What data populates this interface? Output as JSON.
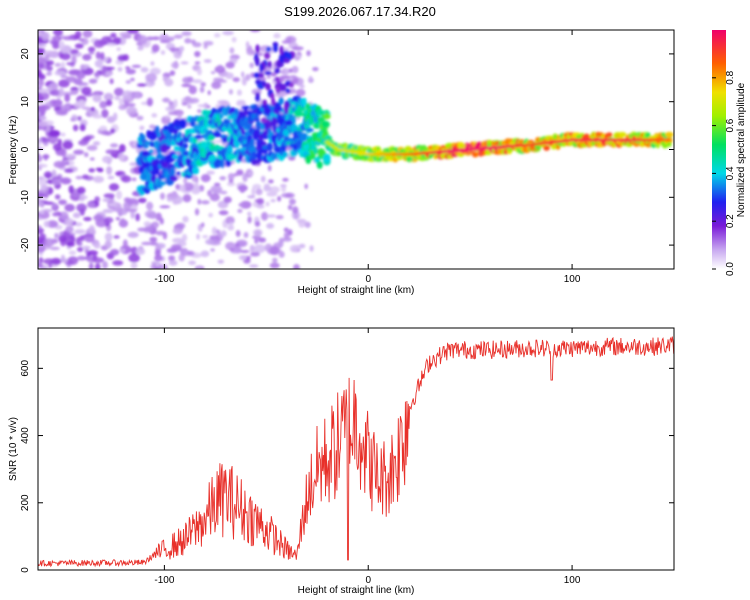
{
  "chart_data": [
    {
      "type": "heatmap",
      "title": "S199.2026.067.17.34.R20",
      "xlabel": "Height of straight line (km)",
      "ylabel": "Frequency (Hz)",
      "xlim": [
        -162,
        150
      ],
      "ylim": [
        -25,
        25
      ],
      "xticks": [
        -100,
        0,
        100
      ],
      "yticks": [
        -20,
        -10,
        0,
        10,
        20
      ],
      "colorbar": {
        "label": "Normalized spectral amplitude",
        "ticks": [
          "0.0",
          "0.2",
          "0.4",
          "0.6",
          "0.8"
        ],
        "range": [
          0,
          1
        ]
      },
      "trace": [
        {
          "x": -110,
          "f": -3,
          "amp": 0.35
        },
        {
          "x": -100,
          "f": -1,
          "amp": 0.3
        },
        {
          "x": -90,
          "f": 0,
          "amp": 0.35
        },
        {
          "x": -80,
          "f": 2,
          "amp": 0.4
        },
        {
          "x": -70,
          "f": 3,
          "amp": 0.38
        },
        {
          "x": -55,
          "f": 3,
          "amp": 0.3
        },
        {
          "x": -45,
          "f": 4,
          "amp": 0.35
        },
        {
          "x": -35,
          "f": 5,
          "amp": 0.4
        },
        {
          "x": -25,
          "f": 3,
          "amp": 0.5
        },
        {
          "x": -15,
          "f": 0,
          "amp": 0.55
        },
        {
          "x": 0,
          "f": -1,
          "amp": 0.6
        },
        {
          "x": 20,
          "f": -1,
          "amp": 0.7
        },
        {
          "x": 50,
          "f": 0,
          "amp": 0.9
        },
        {
          "x": 80,
          "f": 1,
          "amp": 0.75
        },
        {
          "x": 100,
          "f": 2,
          "amp": 0.8
        },
        {
          "x": 130,
          "f": 2,
          "amp": 0.8
        },
        {
          "x": 148,
          "f": 2,
          "amp": 0.7
        }
      ]
    },
    {
      "type": "line",
      "xlabel": "Height of straight line (km)",
      "ylabel": "SNR (10 * v/v)",
      "xlim": [
        -162,
        150
      ],
      "ylim": [
        0,
        720
      ],
      "xticks": [
        -100,
        0,
        100
      ],
      "yticks": [
        0,
        200,
        400,
        600
      ],
      "color": "#e8302a",
      "series": [
        {
          "name": "SNR",
          "x": [
            -162,
            -110,
            -105,
            -90,
            -80,
            -75,
            -70,
            -60,
            -50,
            -40,
            -35,
            -33,
            -30,
            -25,
            -20,
            -15,
            -10,
            -5,
            0,
            5,
            10,
            15,
            20,
            25,
            30,
            40,
            60,
            80,
            100,
            120,
            140,
            150
          ],
          "y": [
            20,
            22,
            45,
            90,
            150,
            200,
            220,
            170,
            120,
            60,
            40,
            120,
            220,
            300,
            330,
            370,
            420,
            450,
            330,
            270,
            280,
            350,
            480,
            550,
            620,
            655,
            655,
            660,
            660,
            665,
            665,
            670
          ]
        }
      ]
    }
  ]
}
